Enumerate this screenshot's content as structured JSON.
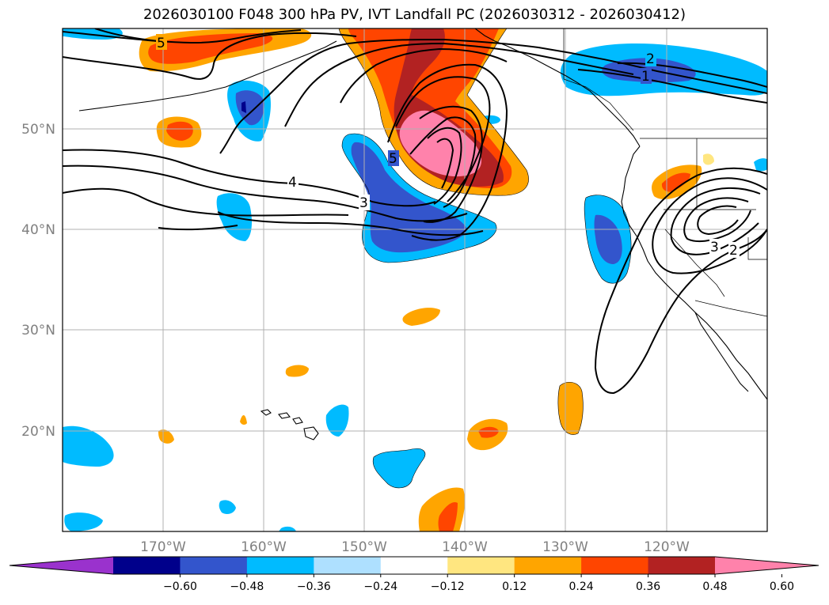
{
  "title": "2026030100 F048 300 hPa PV, IVT Landfall PC (2026030312 - 2026030412)",
  "latitude_labels": [
    "50°N",
    "40°N",
    "30°N",
    "20°N"
  ],
  "longitude_labels": [
    "170°W",
    "160°W",
    "150°W",
    "140°W",
    "130°W",
    "120°W"
  ],
  "colorbar": {
    "tick_labels": [
      "−0.60",
      "−0.48",
      "−0.36",
      "−0.24",
      "−0.12",
      "0.12",
      "0.24",
      "0.36",
      "0.48",
      "0.60"
    ],
    "colors": [
      "#9a32cd",
      "#00008b",
      "#3355cc",
      "#00bbff",
      "#aee0ff",
      "#ffffff",
      "#ffe680",
      "#ffa500",
      "#ff4500",
      "#b22222",
      "#ff82ab"
    ]
  },
  "contour_labels": [
    "5",
    "2",
    "1",
    "4",
    "3",
    "5",
    "3",
    "2"
  ],
  "colors": {
    "grid": "#b0b0b0",
    "coast": "#000000",
    "contour": "#000000"
  }
}
